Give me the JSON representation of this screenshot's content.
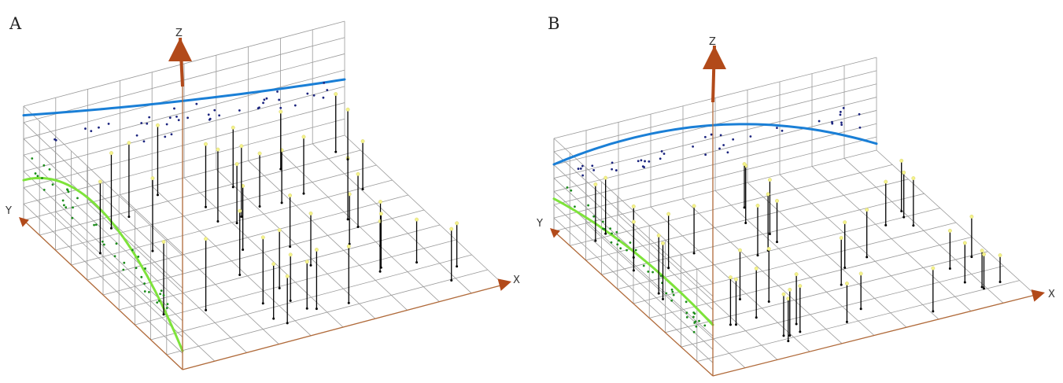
{
  "chart_data": [
    {
      "type": "scatter",
      "panel": "A",
      "axes": {
        "x": "X",
        "y": "Y",
        "z": "Z"
      },
      "grid": true,
      "trend_xz": {
        "color": "#1a7fd6",
        "shape": "decreasing, convex"
      },
      "trend_yz": {
        "color": "#7ee33b",
        "shape": "U-shaped"
      },
      "points_shown": 40,
      "projection_colors": {
        "xz_wall": "#1a237e",
        "yz_wall": "#1b8c1b",
        "point_top": "#f4f28a",
        "stem": "#000000"
      }
    },
    {
      "type": "scatter",
      "panel": "B",
      "axes": {
        "x": "X",
        "y": "Y",
        "z": "Z"
      },
      "grid": true,
      "trend_xz": {
        "color": "#1a7fd6",
        "shape": "inverted U, drops steeply at high X"
      },
      "trend_yz": {
        "color": "#7ee33b",
        "shape": "inverted U"
      },
      "points_shown": 40,
      "projection_colors": {
        "xz_wall": "#1a237e",
        "yz_wall": "#1b8c1b",
        "point_top": "#f4f28a",
        "stem": "#000000"
      }
    }
  ],
  "panels": [
    {
      "letter": "A",
      "x_label": "X",
      "y_label": "Y",
      "z_label": "Z"
    },
    {
      "letter": "B",
      "x_label": "X",
      "y_label": "Y",
      "z_label": "Z"
    }
  ],
  "colors": {
    "grid": "#9a9a9a",
    "axis": "#b06a3a",
    "arrow": "#b24a1a",
    "blue_curve": "#1a7fd6",
    "green_curve": "#7ee33b"
  }
}
